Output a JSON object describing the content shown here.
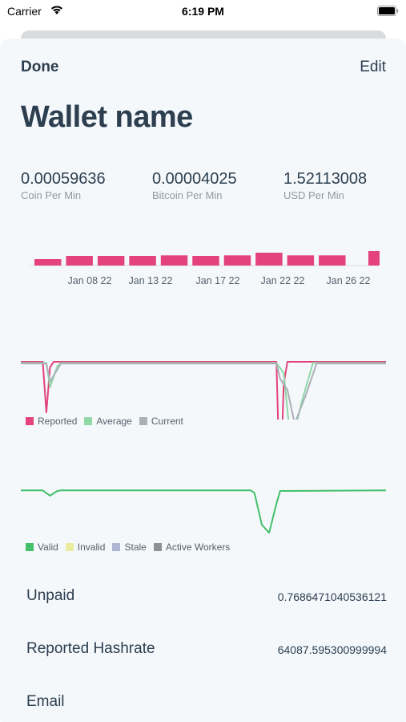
{
  "status_bar": {
    "carrier": "Carrier",
    "time": "6:19 PM"
  },
  "nav": {
    "done_label": "Done",
    "edit_label": "Edit"
  },
  "wallet": {
    "title": "Wallet name"
  },
  "stats": [
    {
      "value": "0.00059636",
      "label": "Coin Per Min"
    },
    {
      "value": "0.00004025",
      "label": "Bitcoin Per Min"
    },
    {
      "value": "1.52113008",
      "label": "USD Per Min"
    }
  ],
  "colors": {
    "reported": "#e3427a",
    "average": "#8fd8a8",
    "current": "#aab0b6",
    "valid": "#42c06a",
    "invalid": "#ecec9e",
    "stale": "#aeb8d6",
    "active_workers": "#8e9093"
  },
  "chart_data": [
    {
      "type": "bar",
      "x_tick_labels": [
        "Jan 08 22",
        "Jan 13 22",
        "Jan 17 22",
        "Jan 22 22",
        "Jan 26 22"
      ],
      "values": [
        0.6,
        0.9,
        0.9,
        0.9,
        0.95,
        0.9,
        0.95,
        1.2,
        0.95,
        0.95,
        1.35
      ],
      "color": "#e3427a"
    },
    {
      "type": "line",
      "series": [
        {
          "name": "Reported",
          "color": "#e3427a",
          "points": [
            [
              0,
              10
            ],
            [
              6,
              10
            ],
            [
              7,
              100
            ],
            [
              8,
              20
            ],
            [
              9,
              10
            ],
            [
              70,
              10
            ],
            [
              71,
              250
            ],
            [
              72,
              50
            ],
            [
              73,
              10
            ],
            [
              100,
              10
            ]
          ]
        },
        {
          "name": "Average",
          "color": "#8fd8a8",
          "points": [
            [
              0,
              12
            ],
            [
              7,
              12
            ],
            [
              8,
              55
            ],
            [
              10,
              18
            ],
            [
              11,
              12
            ],
            [
              70,
              12
            ],
            [
              72,
              30
            ],
            [
              74,
              160
            ],
            [
              77,
              80
            ],
            [
              80,
              12
            ],
            [
              100,
              12
            ]
          ]
        },
        {
          "name": "Current",
          "color": "#aab0b6",
          "points": [
            [
              0,
              13
            ],
            [
              7,
              13
            ],
            [
              8,
              45
            ],
            [
              11,
              13
            ],
            [
              70,
              13
            ],
            [
              71,
              40
            ],
            [
              73,
              60
            ],
            [
              75,
              120
            ],
            [
              78,
              70
            ],
            [
              81,
              13
            ],
            [
              100,
              13
            ]
          ]
        }
      ]
    },
    {
      "type": "line",
      "series": [
        {
          "name": "Valid",
          "color": "#42c06a",
          "points": [
            [
              0,
              10
            ],
            [
              6,
              10
            ],
            [
              8,
              30
            ],
            [
              10,
              12
            ],
            [
              11,
              10
            ],
            [
              63,
              10
            ],
            [
              64,
              20
            ],
            [
              66,
              140
            ],
            [
              68,
              170
            ],
            [
              70,
              60
            ],
            [
              71,
              12
            ],
            [
              100,
              10
            ]
          ]
        },
        {
          "name": "Invalid",
          "color": "#ecec9e",
          "points": [
            [
              0,
              0
            ],
            [
              100,
              0
            ]
          ]
        },
        {
          "name": "Stale",
          "color": "#aeb8d6",
          "points": [
            [
              0,
              0
            ],
            [
              100,
              0
            ]
          ]
        },
        {
          "name": "Active Workers",
          "color": "#8e9093",
          "points": [
            [
              0,
              0
            ],
            [
              8,
              0
            ],
            [
              9,
              6
            ],
            [
              11,
              6
            ],
            [
              12,
              0
            ],
            [
              49,
              0
            ],
            [
              50,
              4
            ],
            [
              52,
              4
            ],
            [
              53,
              0
            ],
            [
              60,
              0
            ],
            [
              61,
              5
            ],
            [
              63,
              5
            ],
            [
              64,
              0
            ],
            [
              100,
              0
            ]
          ]
        }
      ]
    }
  ],
  "details": [
    {
      "label": "Unpaid",
      "value": "0.7686471040536121"
    },
    {
      "label": "Reported Hashrate",
      "value": "64087.595300999994"
    },
    {
      "label": "Email",
      "value": ""
    }
  ]
}
